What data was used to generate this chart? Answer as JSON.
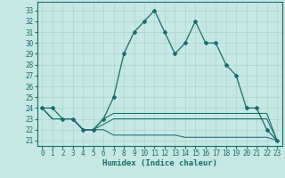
{
  "xlabel": "Humidex (Indice chaleur)",
  "bg_color": "#c5e8e4",
  "line_color": "#1a6b6b",
  "grid_color": "#aad4ce",
  "xlim": [
    -0.5,
    23.5
  ],
  "ylim": [
    20.5,
    33.8
  ],
  "xticks": [
    0,
    1,
    2,
    3,
    4,
    5,
    6,
    7,
    8,
    9,
    10,
    11,
    12,
    13,
    14,
    15,
    16,
    17,
    18,
    19,
    20,
    21,
    22,
    23
  ],
  "yticks": [
    21,
    22,
    23,
    24,
    25,
    26,
    27,
    28,
    29,
    30,
    31,
    32,
    33
  ],
  "series1": [
    24,
    24,
    23,
    23,
    22,
    22,
    23,
    25,
    29,
    31,
    32,
    33,
    31,
    29,
    30,
    32,
    30,
    30,
    28,
    27,
    24,
    24,
    22,
    21
  ],
  "series2": [
    24,
    23,
    23,
    23,
    22,
    22,
    23,
    23.5,
    23.5,
    23.5,
    23.5,
    23.5,
    23.5,
    23.5,
    23.5,
    23.5,
    23.5,
    23.5,
    23.5,
    23.5,
    23.5,
    23.5,
    23.5,
    21
  ],
  "series3": [
    24,
    23,
    23,
    23,
    22,
    22,
    22,
    21.5,
    21.5,
    21.5,
    21.5,
    21.5,
    21.5,
    21.5,
    21.3,
    21.3,
    21.3,
    21.3,
    21.3,
    21.3,
    21.3,
    21.3,
    21.3,
    21
  ],
  "series4": [
    24,
    23,
    23,
    23,
    22,
    22,
    22.5,
    23,
    23,
    23,
    23,
    23,
    23,
    23,
    23,
    23,
    23,
    23,
    23,
    23,
    23,
    23,
    23,
    21
  ]
}
